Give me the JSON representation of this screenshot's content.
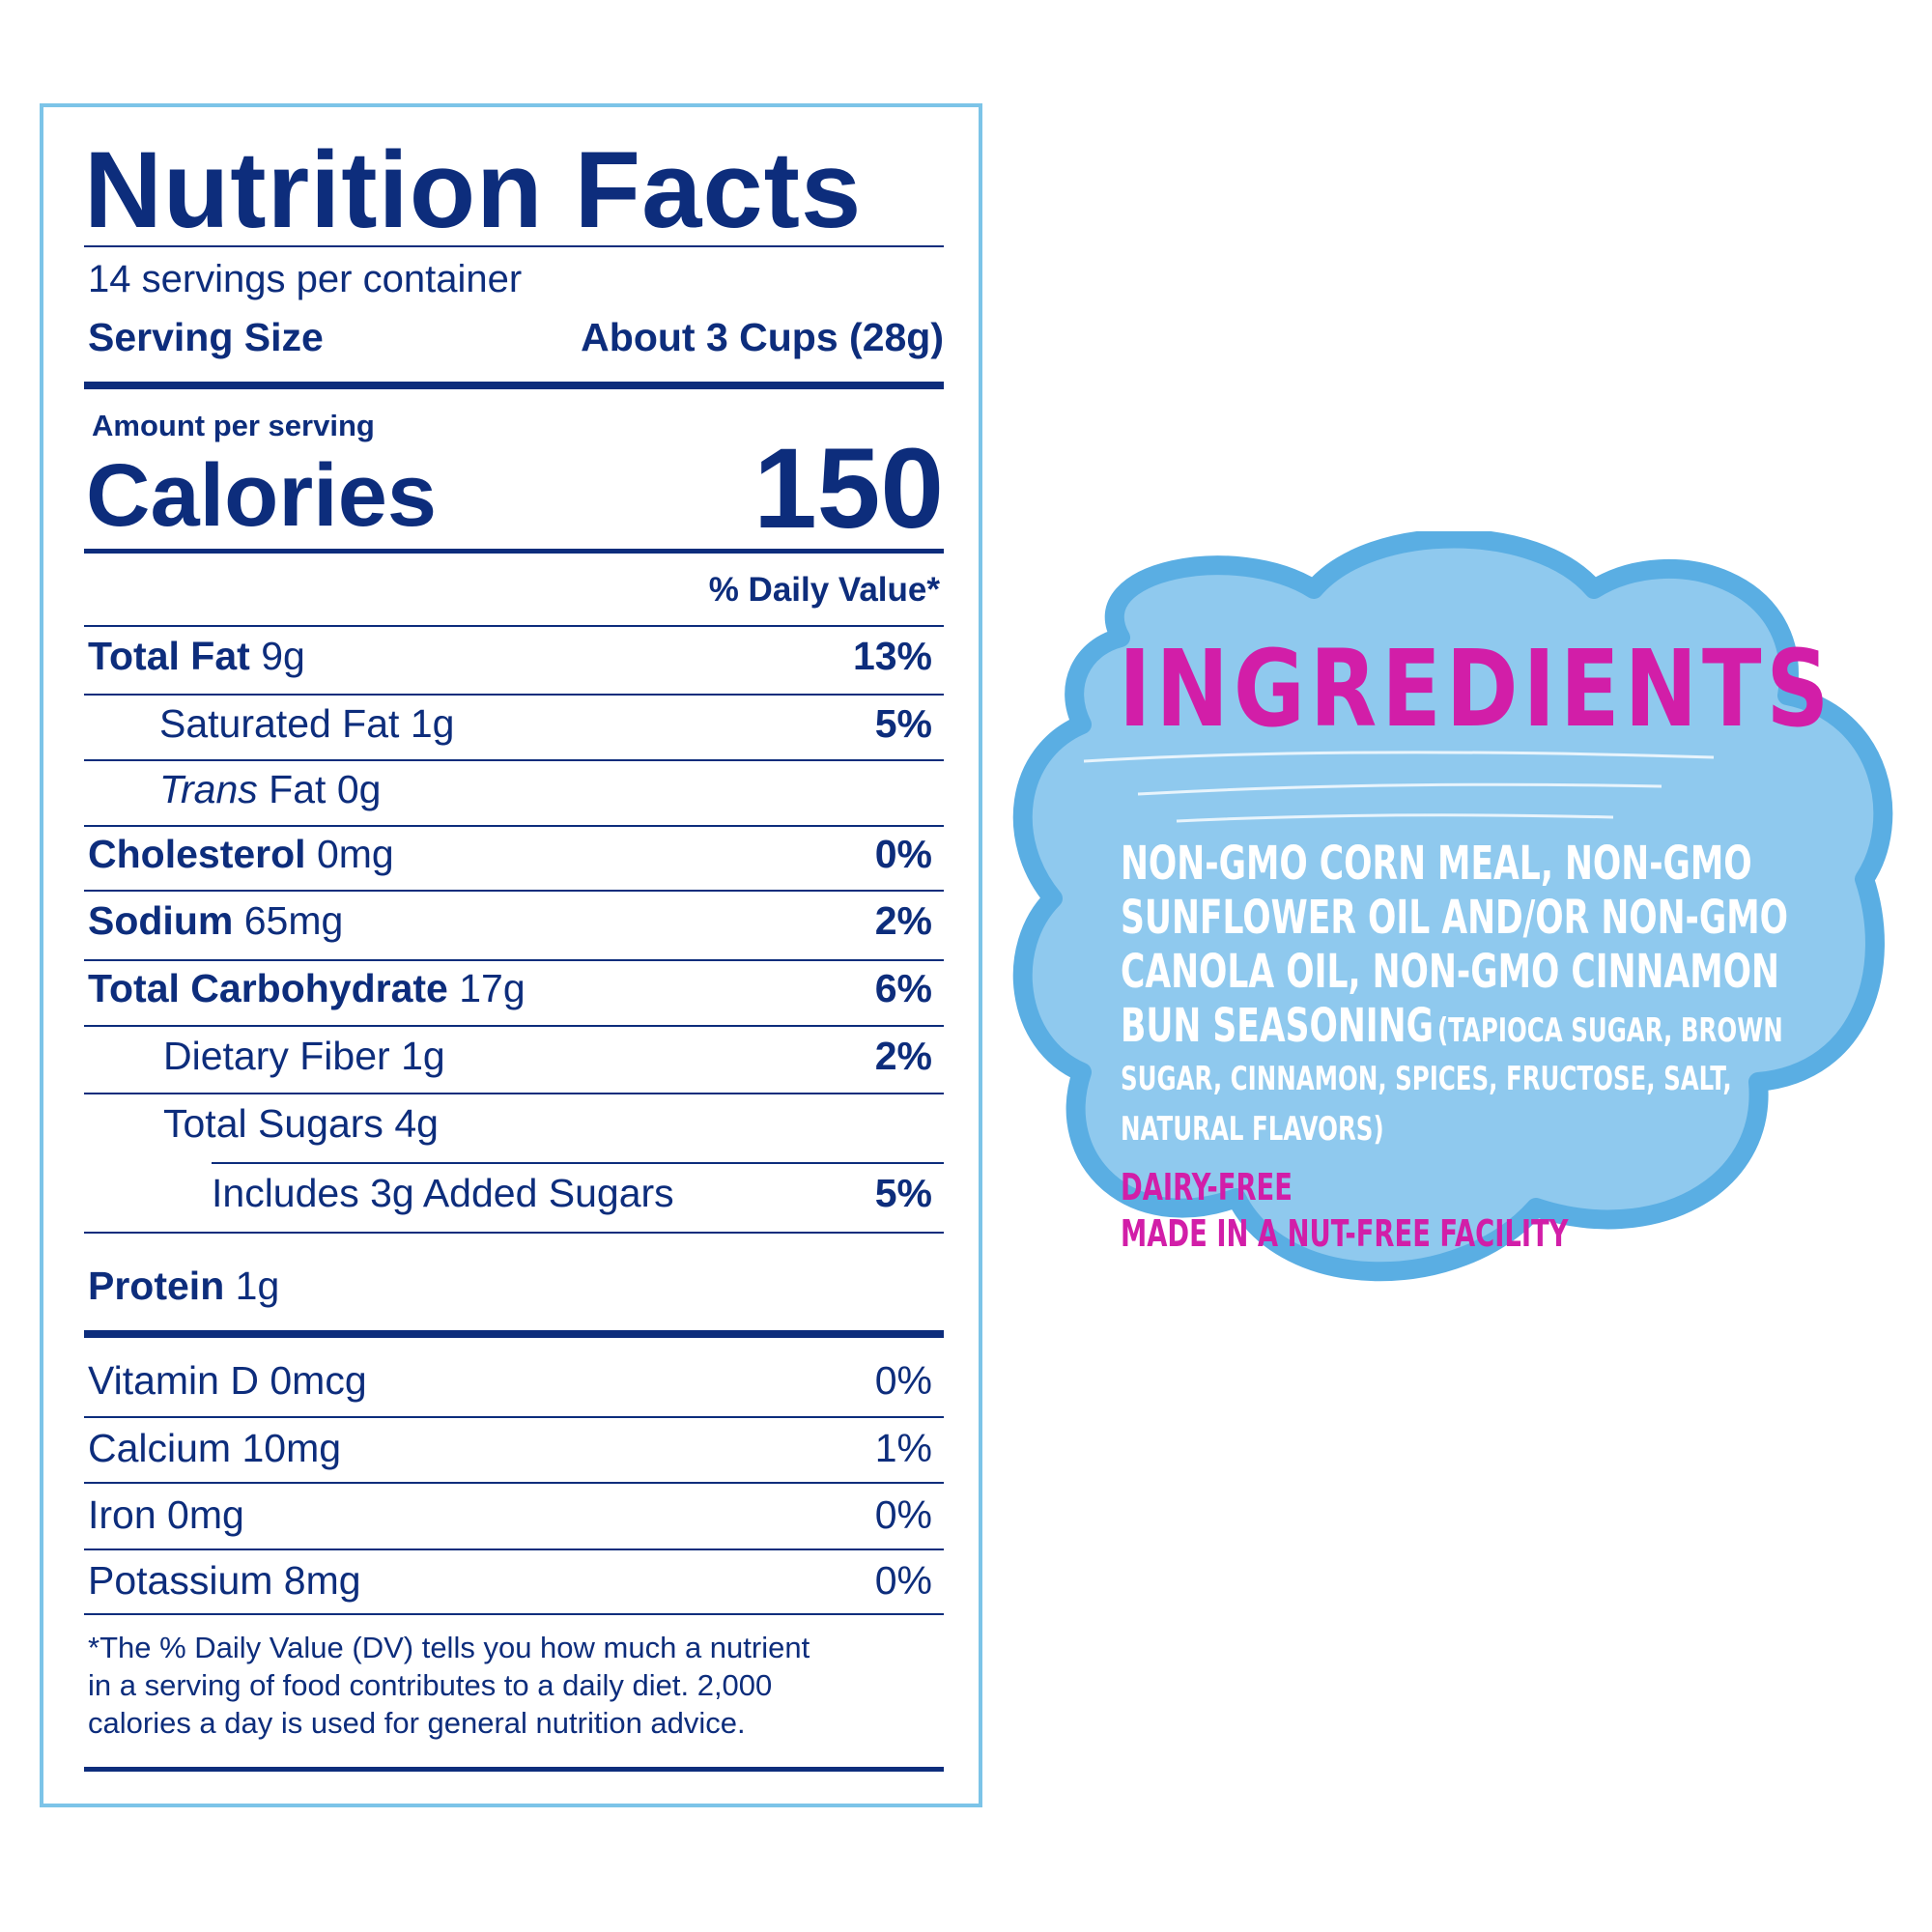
{
  "nutrition": {
    "title": "Nutrition Facts",
    "servings": "14 servings per container",
    "serving_size_label": "Serving Size",
    "serving_size_value": "About 3 Cups (28g)",
    "amount_per_serving": "Amount per serving",
    "calories_label": "Calories",
    "calories_value": "150",
    "daily_value_header": "% Daily Value*",
    "rows": [
      {
        "name": "Total Fat",
        "amount": "9g",
        "dv": "13%"
      },
      {
        "name": "Saturated Fat",
        "amount": "1g",
        "dv": "5%"
      },
      {
        "name_italic": "Trans",
        "name": "Fat",
        "amount": "0g",
        "dv": ""
      },
      {
        "name": "Cholesterol",
        "amount": "0mg",
        "dv": "0%"
      },
      {
        "name": "Sodium",
        "amount": "65mg",
        "dv": "2%"
      },
      {
        "name": "Total Carbohydrate",
        "amount": "17g",
        "dv": "6%"
      },
      {
        "name": "Dietary Fiber",
        "amount": "1g",
        "dv": "2%"
      },
      {
        "name": "Total Sugars",
        "amount": "4g",
        "dv": ""
      },
      {
        "text": "Includes 3g Added Sugars",
        "dv": "5%"
      },
      {
        "name": "Protein",
        "amount": "1g",
        "dv": ""
      }
    ],
    "vitamins": [
      {
        "text": "Vitamin D 0mcg",
        "dv": "0%"
      },
      {
        "text": "Calcium 10mg",
        "dv": "1%"
      },
      {
        "text": "Iron 0mg",
        "dv": "0%"
      },
      {
        "text": "Potassium 8mg",
        "dv": "0%"
      }
    ],
    "footnote": [
      "*The % Daily Value (DV) tells you how much a nutrient",
      "in a serving of food contributes to a daily diet. 2,000",
      "calories a day is used for general nutrition advice."
    ]
  },
  "ingredients": {
    "title": "INGREDIENTS",
    "lines": [
      "non-gmo corn meal, non-gmo",
      "sunflower oil and/or non-gmo",
      "canola oil, non-gmo cinnamon"
    ],
    "line4_main": "bun seasoning",
    "line4_small": "(tapioca sugar, brown",
    "line5": "sugar, cinnamon, spices, fructose, salt,",
    "line6": "natural flavors)",
    "note1": "DAIRY-FREE",
    "note2": "MADE IN A NUT-FREE FACILITY",
    "colors": {
      "cloud_fill": "#8fc9ee",
      "cloud_border": "#5aaee3",
      "title": "#d21ea8"
    }
  }
}
